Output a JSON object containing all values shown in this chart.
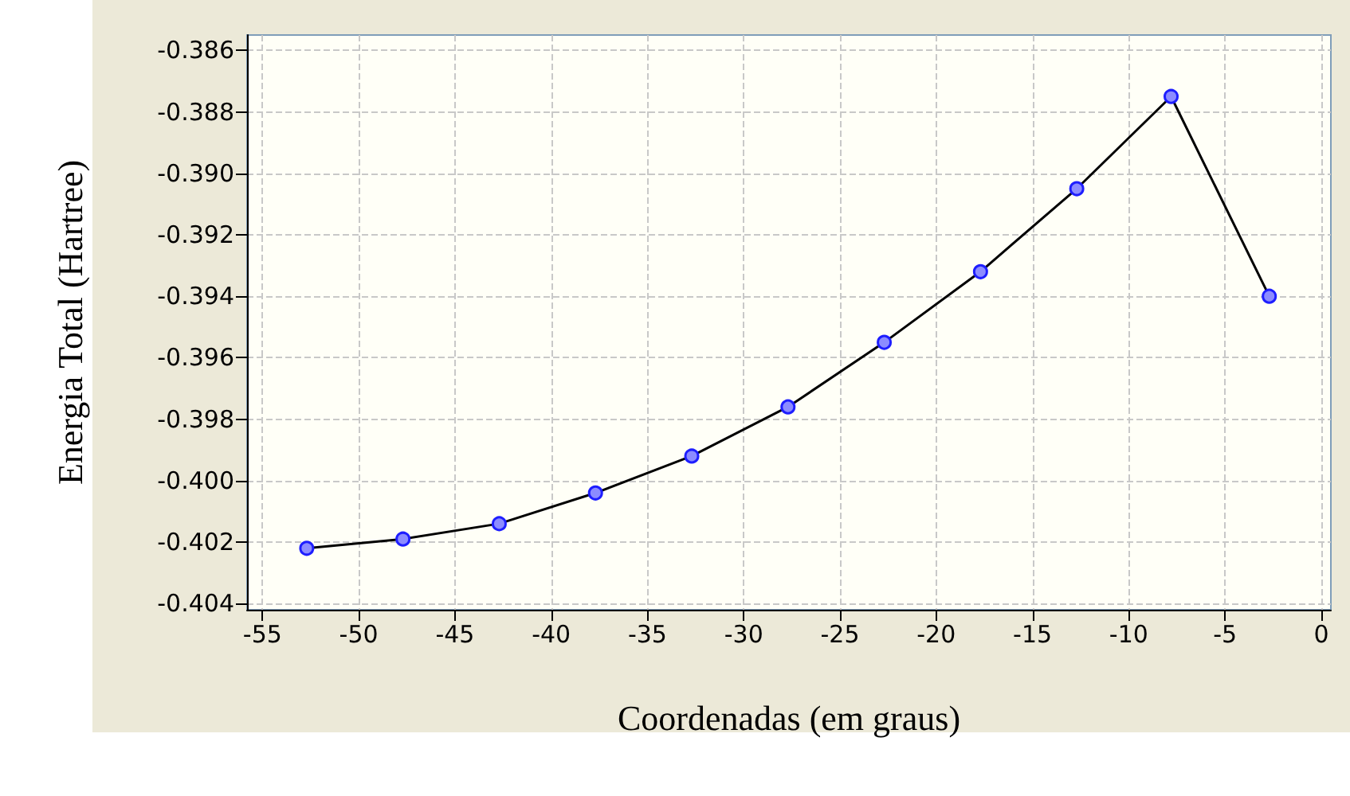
{
  "chart_data": {
    "type": "line",
    "xlabel": "Coordenadas (em graus)",
    "ylabel": "Energia Total (Hartree)",
    "x": [
      -52.7,
      -47.7,
      -42.7,
      -37.7,
      -32.7,
      -27.7,
      -22.7,
      -17.7,
      -12.7,
      -7.8,
      -2.7
    ],
    "series": [
      {
        "color": "#000000",
        "values": [
          -0.4022,
          -0.4019,
          -0.4014,
          -0.4004,
          -0.3992,
          -0.3976,
          -0.3955,
          -0.3932,
          -0.3905,
          -0.3875,
          -0.394
        ]
      }
    ],
    "marker": "circle",
    "line_style": "solid",
    "grid": true,
    "legend": false,
    "xlim": [
      -55.8,
      0.5
    ],
    "xticks": [
      -55,
      -50,
      -45,
      -40,
      -35,
      -30,
      -25,
      -20,
      -15,
      -10,
      -5,
      0
    ],
    "ylim": [
      -0.4042,
      -0.3855
    ],
    "yticks": [
      -0.404,
      -0.402,
      {
        "value": -0.4,
        "label": "-0.400"
      },
      -0.398,
      -0.396,
      -0.394,
      -0.392,
      {
        "value": -0.39,
        "label": "-0.390"
      },
      -0.388,
      -0.386
    ]
  }
}
